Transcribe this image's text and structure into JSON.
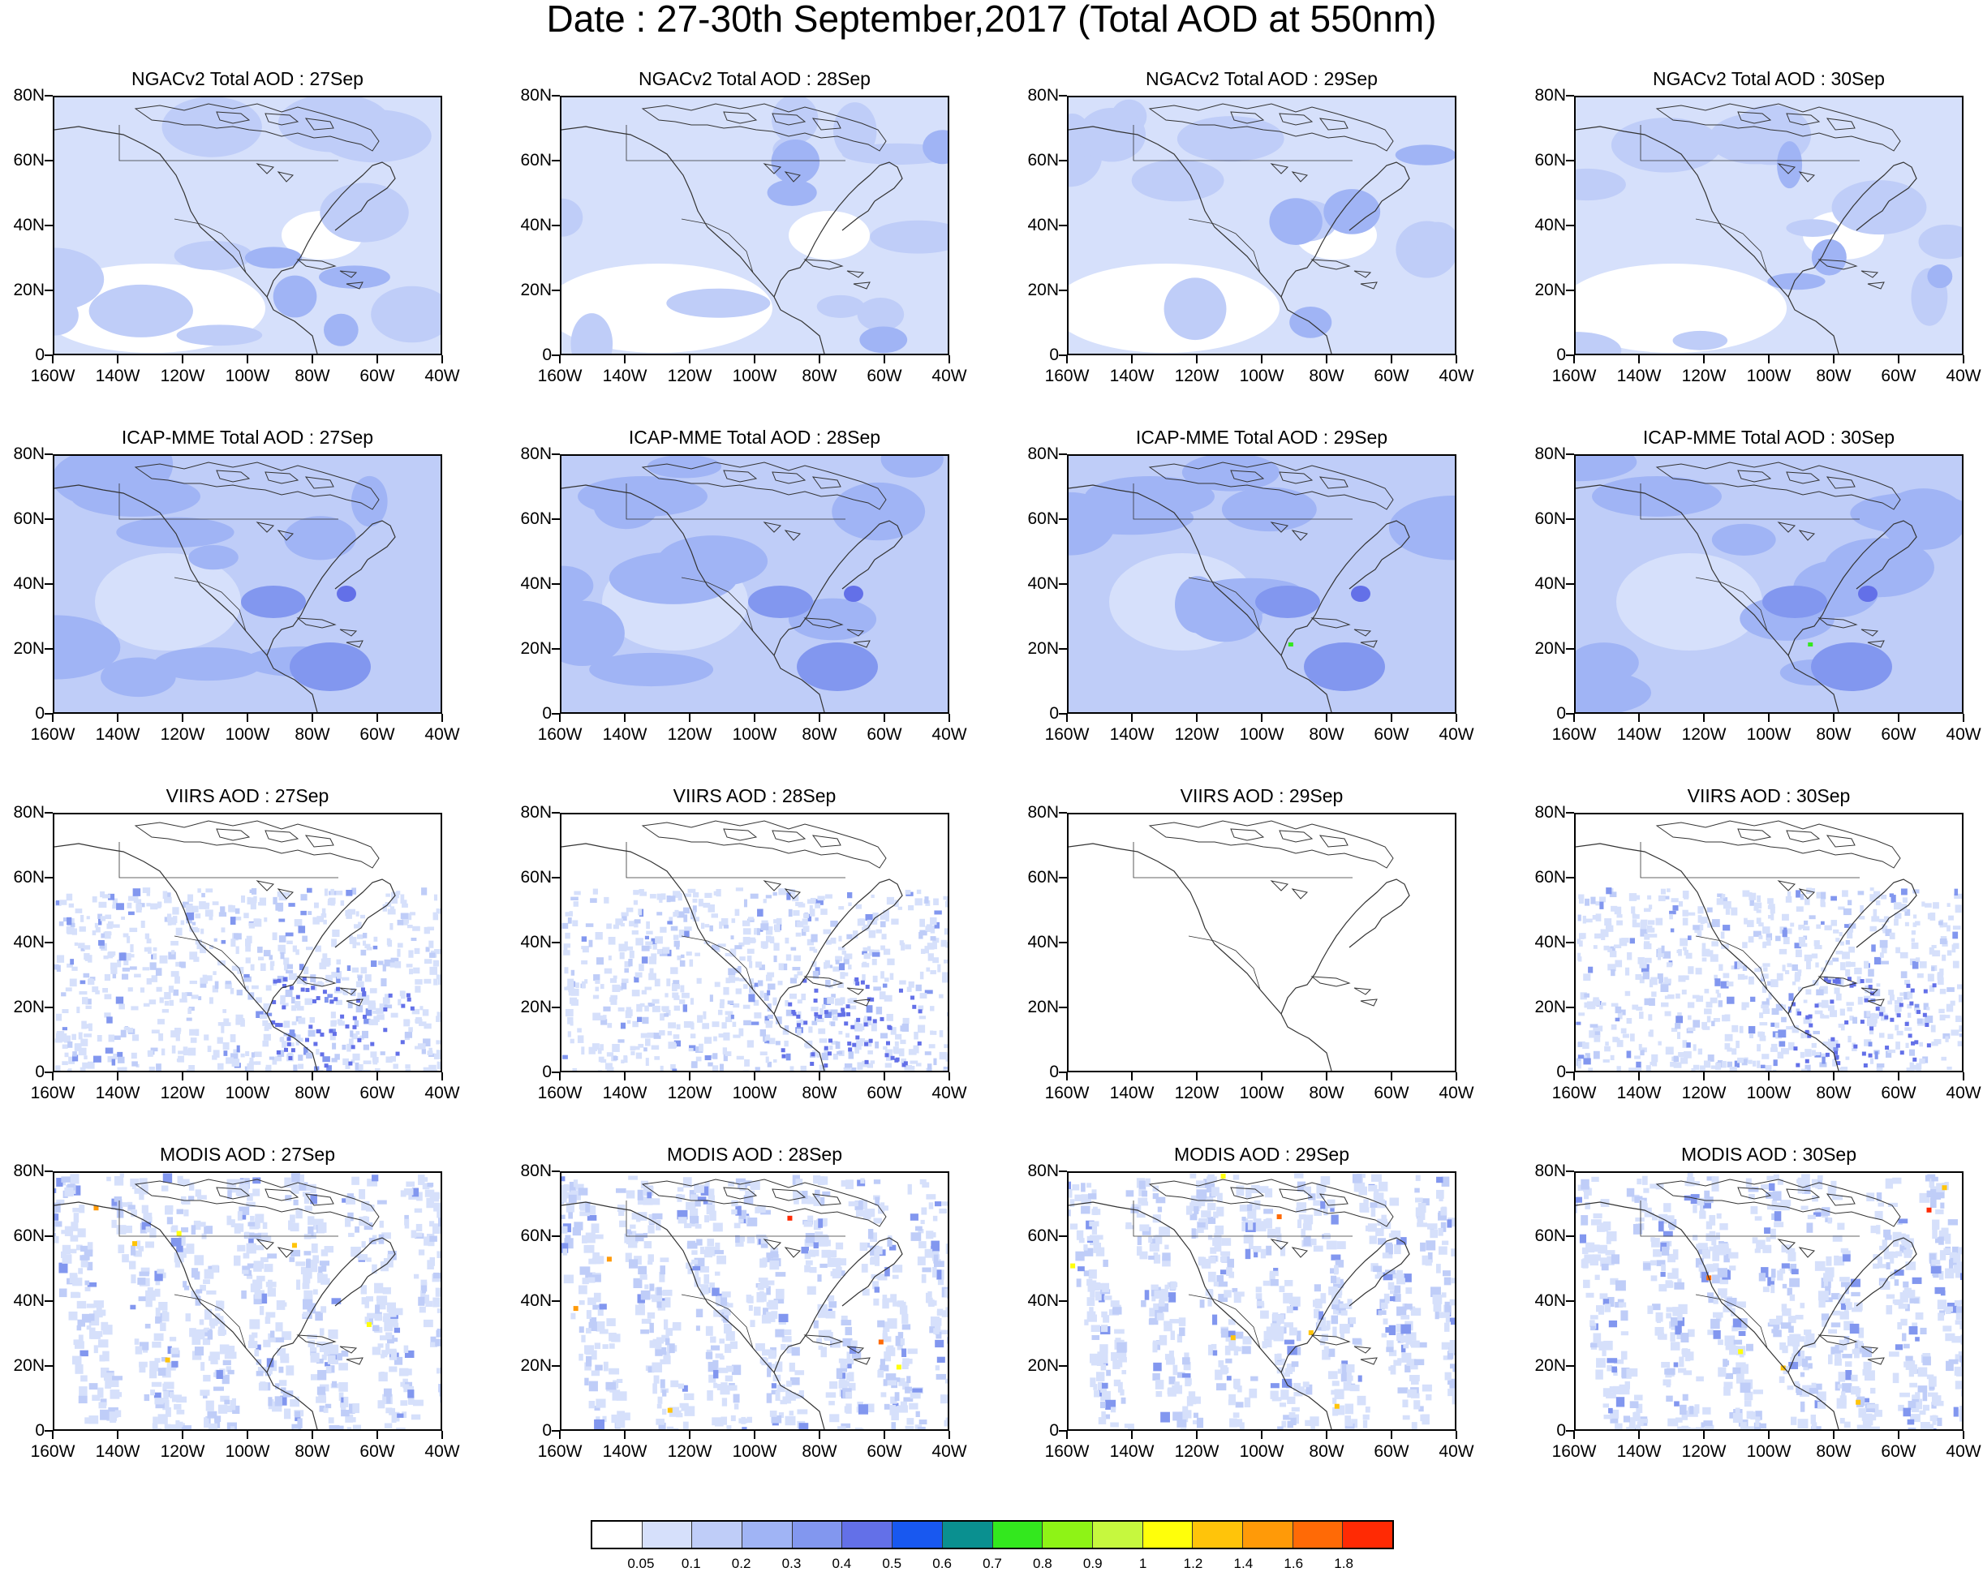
{
  "title": "Date : 27-30th September,2017 (Total AOD at 550nm)",
  "map": {
    "lat_labels": [
      "80N",
      "60N",
      "40N",
      "20N",
      "0"
    ],
    "lon_labels": [
      "160W",
      "140W",
      "120W",
      "100W",
      "80W",
      "60W",
      "40W"
    ],
    "lat_range": [
      0,
      80
    ],
    "lon_range": [
      -160,
      -40
    ]
  },
  "panels": [
    {
      "title": "NGACv2 Total AOD : 27Sep"
    },
    {
      "title": "NGACv2 Total AOD : 28Sep"
    },
    {
      "title": "NGACv2 Total AOD : 29Sep"
    },
    {
      "title": "NGACv2 Total AOD : 30Sep"
    },
    {
      "title": "ICAP-MME Total AOD : 27Sep"
    },
    {
      "title": "ICAP-MME Total AOD : 28Sep"
    },
    {
      "title": "ICAP-MME Total AOD : 29Sep"
    },
    {
      "title": "ICAP-MME Total AOD : 30Sep"
    },
    {
      "title": "VIIRS AOD : 27Sep"
    },
    {
      "title": "VIIRS AOD : 28Sep"
    },
    {
      "title": "VIIRS AOD : 29Sep"
    },
    {
      "title": "VIIRS AOD : 30Sep"
    },
    {
      "title": "MODIS AOD : 27Sep"
    },
    {
      "title": "MODIS AOD : 28Sep"
    },
    {
      "title": "MODIS AOD : 29Sep"
    },
    {
      "title": "MODIS AOD : 30Sep"
    }
  ],
  "colorbar": {
    "labels": [
      "0.05",
      "0.1",
      "0.2",
      "0.3",
      "0.4",
      "0.5",
      "0.6",
      "0.7",
      "0.8",
      "0.9",
      "1",
      "1.2",
      "1.4",
      "1.6",
      "1.8"
    ],
    "colors": [
      "#ffffff",
      "#d6e0fb",
      "#bfcdf8",
      "#a0b4f5",
      "#8297ef",
      "#6370e8",
      "#1858f0",
      "#0a9090",
      "#33e81e",
      "#8ef316",
      "#c6f83e",
      "#ffff0a",
      "#ffc40a",
      "#ff9a08",
      "#ff6a06",
      "#ff2a04"
    ]
  }
}
